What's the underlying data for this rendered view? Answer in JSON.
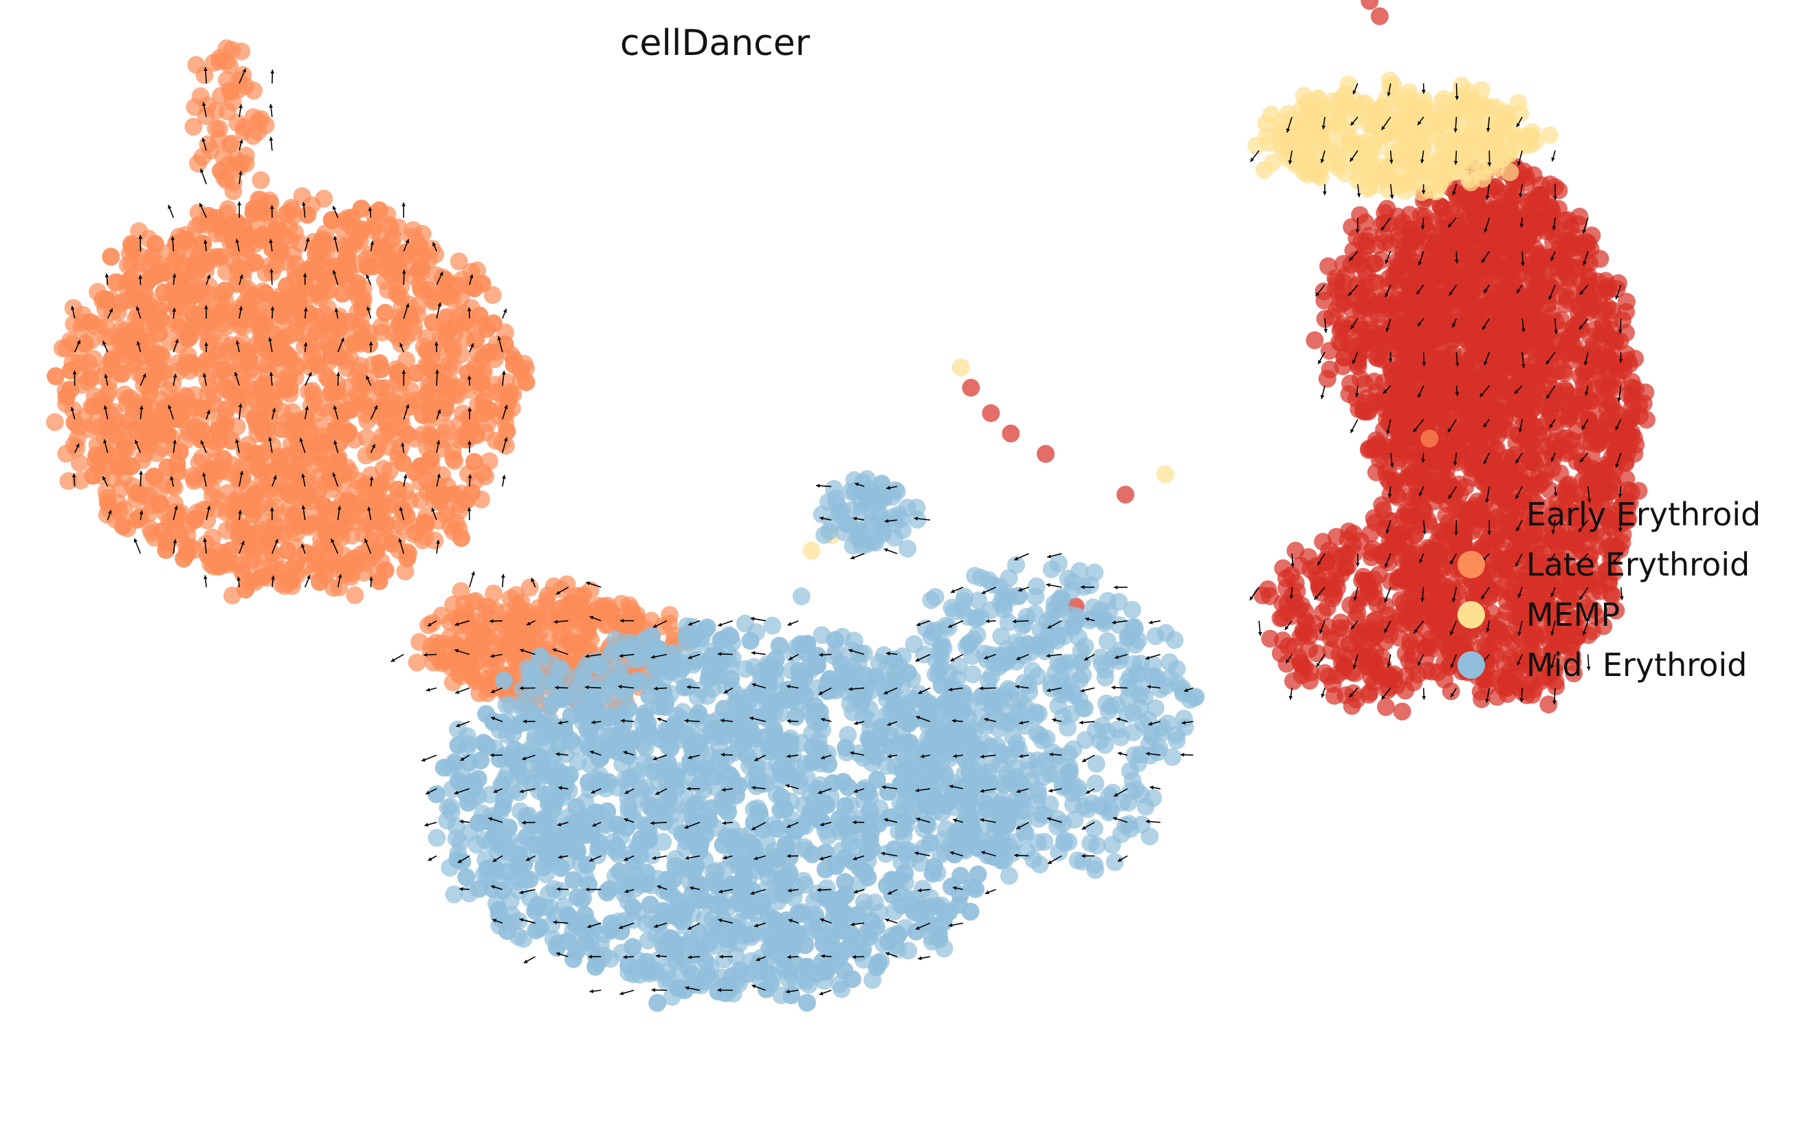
{
  "chart_data": {
    "type": "scatter",
    "title": "cellDancer",
    "xlabel": "",
    "ylabel": "",
    "axes_visible": false,
    "grid": false,
    "legend_position": "right",
    "overlay": "velocity arrows (quiver)",
    "series": [
      {
        "name": "Early Erythroid",
        "color": "#d73027",
        "clusters": [
          {
            "cx": 8.0,
            "cy": 5.2,
            "rx": 1.3,
            "ry": 2.6,
            "n": 1900
          },
          {
            "cx": 7.3,
            "cy": 6.3,
            "rx": 1.1,
            "ry": 1.2,
            "n": 500
          },
          {
            "cx": 6.6,
            "cy": 3.4,
            "rx": 1.0,
            "ry": 0.8,
            "n": 260
          }
        ],
        "outliers": [
          [
            6.65,
            9.45
          ],
          [
            6.75,
            9.3
          ],
          [
            2.65,
            5.65
          ],
          [
            2.85,
            5.4
          ],
          [
            3.05,
            5.2
          ],
          [
            3.4,
            5.0
          ],
          [
            4.2,
            4.6
          ],
          [
            3.7,
            3.5
          ]
        ]
      },
      {
        "name": "Late Erythroid",
        "color": "#fc8d59",
        "clusters": [
          {
            "cx": -4.2,
            "cy": 5.6,
            "rx": 2.3,
            "ry": 1.9,
            "n": 1900
          },
          {
            "cx": -1.6,
            "cy": 3.1,
            "rx": 1.3,
            "ry": 0.55,
            "n": 380
          },
          {
            "cx": -4.8,
            "cy": 8.3,
            "rx": 0.35,
            "ry": 0.7,
            "n": 60
          }
        ],
        "outliers": [
          [
            7.25,
            5.15
          ]
        ]
      },
      {
        "name": "MEMP",
        "color": "#fee090",
        "clusters": [
          {
            "cx": 7.0,
            "cy": 8.1,
            "rx": 1.4,
            "ry": 0.45,
            "n": 380
          }
        ],
        "outliers": [
          [
            2.55,
            5.85
          ],
          [
            1.05,
            4.05
          ],
          [
            1.25,
            4.2
          ],
          [
            4.6,
            4.8
          ],
          [
            -1.55,
            2.25
          ]
        ]
      },
      {
        "name": "Mid  Erythroid",
        "color": "#91bfdb",
        "clusters": [
          {
            "cx": 0.2,
            "cy": 1.5,
            "rx": 2.9,
            "ry": 1.8,
            "n": 2200
          },
          {
            "cx": 3.3,
            "cy": 2.4,
            "rx": 1.5,
            "ry": 1.5,
            "n": 500
          },
          {
            "cx": 1.6,
            "cy": 4.4,
            "rx": 0.5,
            "ry": 0.3,
            "n": 70
          }
        ],
        "outliers": [
          [
            0.95,
            3.6
          ]
        ]
      }
    ],
    "legend": [
      "Early Erythroid",
      "Late Erythroid",
      "MEMP",
      "Mid  Erythroid"
    ]
  }
}
